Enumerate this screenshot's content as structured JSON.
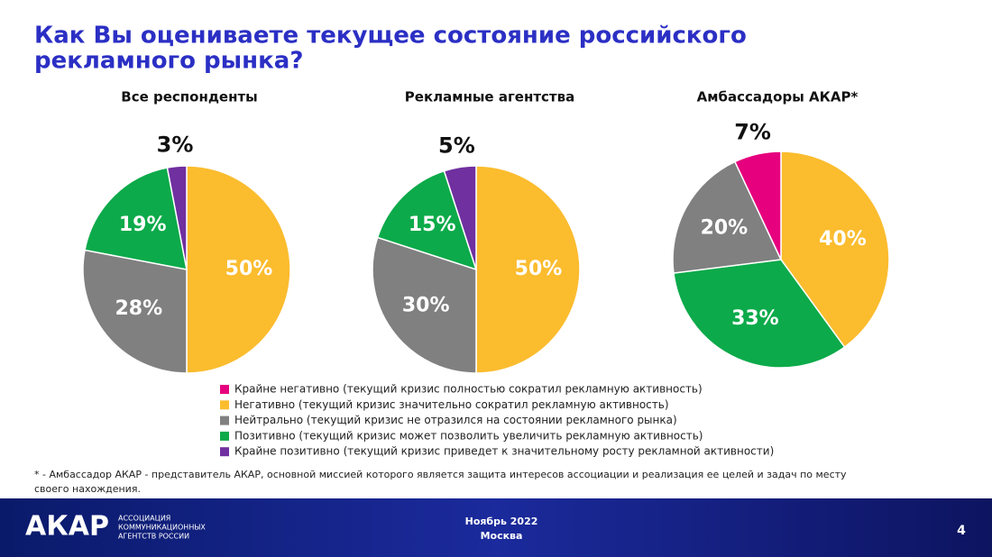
{
  "title": [
    "Как Вы оцениваете текущее состояние российского",
    "рекламного рынка?"
  ],
  "chart_data": [
    {
      "type": "pie",
      "title": "Все респонденты",
      "categories": [
        "Негативно (текущий кризис значительно сократил рекламную активность)",
        "Нейтрально (текущий кризис не отразился на состоянии рекламного рынка)",
        "Позитивно (текущий кризис может позволить  увеличить рекламную активность)",
        "Крайне позитивно (текущий кризис приведет к значительному росту рекламной активности)"
      ],
      "values": [
        50,
        28,
        19,
        3
      ],
      "value_labels": [
        "50%",
        "28%",
        "19%",
        "3%"
      ],
      "colors": [
        "#fbbc2e",
        "#808080",
        "#0caa4a",
        "#7030a0"
      ]
    },
    {
      "type": "pie",
      "title": "Рекламные агентства",
      "categories": [
        "Негативно (текущий кризис значительно сократил рекламную активность)",
        "Нейтрально (текущий кризис не отразился на состоянии рекламного рынка)",
        "Позитивно (текущий кризис может позволить  увеличить рекламную активность)",
        "Крайне позитивно (текущий кризис приведет к значительному росту рекламной активности)"
      ],
      "values": [
        50,
        30,
        15,
        5
      ],
      "value_labels": [
        "50%",
        "30%",
        "15%",
        "5%"
      ],
      "colors": [
        "#fbbc2e",
        "#808080",
        "#0caa4a",
        "#7030a0"
      ]
    },
    {
      "type": "pie",
      "title": "Амбассадоры АКАР*",
      "categories": [
        "Негативно (текущий кризис значительно сократил рекламную активность)",
        "Позитивно (текущий кризис может позволить  увеличить рекламную активность)",
        "Нейтрально (текущий кризис не отразился на состоянии рекламного рынка)",
        "Крайне негативно (текущий кризис полностью сократил рекламную активность)"
      ],
      "values": [
        40,
        33,
        20,
        7
      ],
      "value_labels": [
        "40%",
        "33%",
        "20%",
        "7%"
      ],
      "colors": [
        "#fbbc2e",
        "#0caa4a",
        "#808080",
        "#e6007e"
      ]
    }
  ],
  "legend": {
    "labels": [
      "Крайне негативно (текущий кризис полностью сократил рекламную активность)",
      "Негативно (текущий кризис значительно сократил рекламную активность)",
      "Нейтрально (текущий кризис не отразился на состоянии рекламного рынка)",
      "Позитивно (текущий кризис может позволить  увеличить рекламную активность)",
      "Крайне позитивно (текущий кризис приведет к значительному росту рекламной активности)"
    ],
    "colors": [
      "#e6007e",
      "#fbbc2e",
      "#808080",
      "#0caa4a",
      "#7030a0"
    ]
  },
  "footnote": [
    "* - Амбассадор АКАР - представитель АКАР,  основной миссией которого является защита интересов ассоциации и реализация ее целей и задач по месту",
    "своего нахождения."
  ],
  "footer": {
    "logo": "АКАР",
    "org": [
      "АССОЦИАЦИЯ",
      "КОММУНИКАЦИОННЫХ",
      "АГЕНТСТВ РОССИИ"
    ],
    "date": "Ноябрь 2022",
    "city": "Москва",
    "page": "4"
  }
}
